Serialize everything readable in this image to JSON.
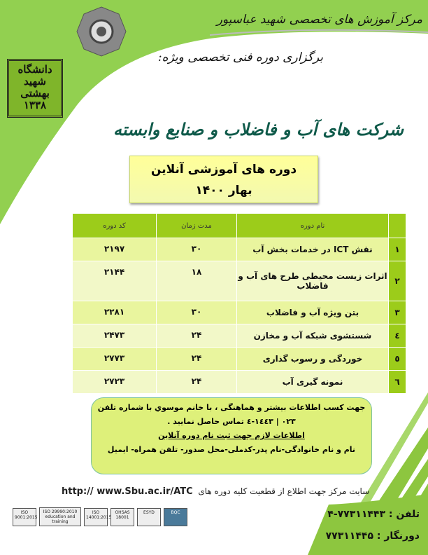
{
  "header": {
    "center_name": "مرکز آموزش های تخصصی شهید عباسپور",
    "subtitle": "برگزاری دوره فنی تخصصی ویژه:",
    "main_title": "شرکت های آب و فاضلاب و صنایع وابسته",
    "university_logo_text": "دانشگاه شهید بهشتی ۱۳۳۸"
  },
  "title_box": {
    "line1": "دوره های آموزشی آنلاین",
    "line2": "بهار ۱۴۰۰"
  },
  "table": {
    "headers": {
      "name": "نام دوره",
      "duration": "مدت زمان",
      "code": "کد دوره"
    },
    "rows": [
      {
        "num": "۱",
        "name": "نقش ICT در خدمات بخش آب",
        "duration": "۳۰",
        "code": "۲۱۹۷"
      },
      {
        "num": "۲",
        "name": "اثرات زیست محیطی طرح های آب و فاضلاب",
        "duration": "۱۸",
        "code": "۲۱۴۴"
      },
      {
        "num": "۳",
        "name": "بتن ویژه آب و فاضلاب",
        "duration": "۳۰",
        "code": "۲۲۸۱"
      },
      {
        "num": "٤",
        "name": "شستشوی شبکه آب و مخازن",
        "duration": "۲۴",
        "code": "۲۴۷۳"
      },
      {
        "num": "٥",
        "name": "خوردگی و رسوب گذاری",
        "duration": "۲۴",
        "code": "۲۷۷۳"
      },
      {
        "num": "٦",
        "name": "نمونه گیری آب",
        "duration": "۲۴",
        "code": "۲۷۲۳"
      }
    ]
  },
  "info": {
    "line1": "جهت کسب اطلاعات بیشتر و هماهنگی ، با خانم موسوي  با شماره تلفن",
    "line2": "۰۲۳ | ۱٤٤۳-٤ تماس حاصل نمایید .",
    "line3": "اطلاعات لازم جهت ثبت نام دوره آنلاین",
    "line4": "نام و نام خانوادگی-نام پدر-کدملی-محل صدور- تلفن همراه- ایمیل"
  },
  "footer": {
    "site_text": "سایت مرکز جهت اطلاع از قطعیت کلیه دوره های",
    "site_url": "http:// www.Sbu.ac.ir/ATC",
    "phone": "تلفن :  ۷۷۳۱۱۴۴۳-۴",
    "fax": "دورنگار : ۷۷۳۱۱۴۴۵",
    "cert_logos": [
      "ISO 9001:2015",
      "ISO 29990:2010 education and training",
      "ISO 14001:2015",
      "OHSAS 18001",
      "ESYD",
      "BQC"
    ]
  },
  "colors": {
    "green": "#8dc63f",
    "table_header": "#9ccc1a",
    "title_teal": "#0f5a4a"
  }
}
